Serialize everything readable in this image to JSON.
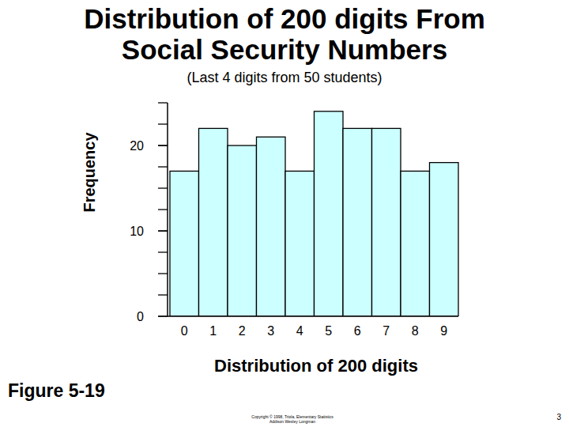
{
  "chart_data": {
    "type": "bar",
    "title": "Distribution of 200 digits From Social Security Numbers",
    "subtitle": "(Last 4 digits from 50 students)",
    "y_label": "Frequency",
    "x_label": "Distribution of 200 digits",
    "figure_label": "Figure 5-19",
    "footer": [
      "Copyright © 1998, Triola, Elementary Statistics",
      "Addison Wesley Longman"
    ],
    "page_number": "3",
    "categories": [
      "0",
      "1",
      "2",
      "3",
      "4",
      "5",
      "6",
      "7",
      "8",
      "9"
    ],
    "values": [
      17,
      22,
      20,
      21,
      17,
      24,
      22,
      22,
      17,
      18
    ],
    "color": "#ccffff",
    "ylim": [
      0,
      25
    ],
    "yticks": [
      0,
      10,
      20
    ],
    "grid": false
  }
}
